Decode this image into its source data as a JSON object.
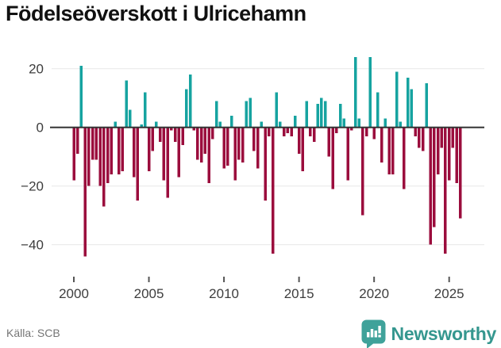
{
  "title": "Födelseöverskott i Ulricehamn",
  "source": "Källa: SCB",
  "brand": {
    "name": "Newsworthy",
    "icon": "newsworthy-bar-chart-logo",
    "icon_color": "#3FA29A",
    "wordmark_color": "#35978F"
  },
  "chart_data": {
    "type": "bar",
    "title": "Födelseöverskott i Ulricehamn",
    "x_unit": "quarter",
    "start_period": "2000 Q1",
    "end_period": "2025 Q4",
    "x_tick_labels": [
      2000,
      2005,
      2010,
      2015,
      2020,
      2025
    ],
    "y_tick_labels": [
      20,
      0,
      -20,
      -40
    ],
    "ylim": [
      -48,
      25
    ],
    "grid": "horizontal",
    "legend": "none",
    "positive_color": "#16A3A0",
    "negative_color": "#9B0D3D",
    "zero_line_color": "#333333",
    "gridline_color": "#e7e7e7",
    "axis_text_color": "#3d3d3d",
    "values": [
      -18,
      -9,
      21,
      -44,
      -20,
      -11,
      -11,
      -20,
      -27,
      -19,
      -16,
      2,
      -16,
      -15,
      16,
      6,
      -17,
      -25,
      1,
      12,
      -15,
      -8,
      2,
      -5,
      -18,
      -24,
      -1,
      -5,
      -17,
      -6,
      13,
      18,
      -1,
      -11,
      -12,
      -9,
      -19,
      -4,
      9,
      2,
      -14,
      -13,
      4,
      -18,
      -11,
      -12,
      9,
      10,
      -8,
      -14,
      2,
      -25,
      -3,
      -43,
      12,
      2,
      -3,
      -2,
      -3,
      4,
      -9,
      -15,
      9,
      -3,
      -5,
      8,
      10,
      9,
      -10,
      -21,
      -2,
      8,
      3,
      -18,
      -1,
      24,
      3,
      -30,
      -3,
      24,
      -4,
      12,
      -12,
      3,
      -16,
      -16,
      19,
      2,
      -21,
      17,
      13,
      -3,
      -7,
      -8,
      15,
      -40,
      -34,
      -16,
      -7,
      -43,
      -18,
      -7,
      -19,
      -31
    ]
  }
}
